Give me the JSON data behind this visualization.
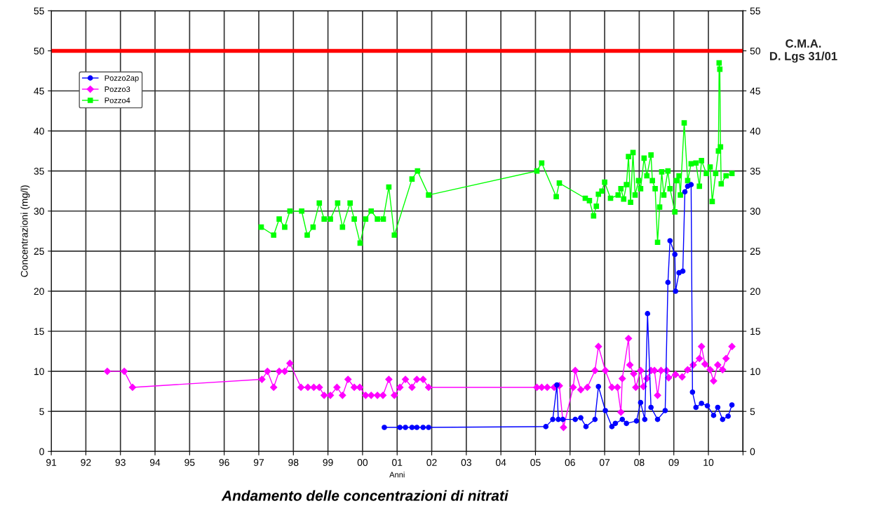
{
  "chart_data": {
    "type": "line",
    "xlabel": "Anni",
    "ylabel": "Concentrazioni (mg/l)",
    "xlim": [
      1991,
      2011
    ],
    "xticks": [
      {
        "value": 1991,
        "label": "91"
      },
      {
        "value": 1992,
        "label": "92"
      },
      {
        "value": 1993,
        "label": "93"
      },
      {
        "value": 1994,
        "label": "94"
      },
      {
        "value": 1995,
        "label": "95"
      },
      {
        "value": 1996,
        "label": "96"
      },
      {
        "value": 1997,
        "label": "97"
      },
      {
        "value": 1998,
        "label": "98"
      },
      {
        "value": 1999,
        "label": "99"
      },
      {
        "value": 2000,
        "label": "00"
      },
      {
        "value": 2001,
        "label": "01"
      },
      {
        "value": 2002,
        "label": "02"
      },
      {
        "value": 2003,
        "label": "03"
      },
      {
        "value": 2004,
        "label": "04"
      },
      {
        "value": 2005,
        "label": "05"
      },
      {
        "value": 2006,
        "label": "06"
      },
      {
        "value": 2007,
        "label": "07"
      },
      {
        "value": 2008,
        "label": "08"
      },
      {
        "value": 2009,
        "label": "09"
      },
      {
        "value": 2010,
        "label": "10"
      },
      {
        "value": 2011,
        "label": null
      }
    ],
    "ylim": [
      0,
      55
    ],
    "yticks": [
      0,
      5,
      10,
      15,
      20,
      25,
      30,
      35,
      40,
      45,
      50,
      55
    ],
    "y2lim": [
      0,
      55
    ],
    "y2ticks": [
      0,
      5,
      10,
      15,
      20,
      25,
      30,
      35,
      40,
      45,
      50,
      55
    ],
    "grid": true,
    "legend": "top left",
    "line_style": "solid",
    "ref_lines": [
      {
        "axis": "y",
        "value": 50,
        "label": "C.M.A.\nD. Lgs 31/01",
        "color": "#ff0000"
      }
    ],
    "annotations": [
      "Andamento delle concentrazioni di nitrati"
    ],
    "series": [
      {
        "name": "Pozzo2ap",
        "color": "#0000ff",
        "marker": "circle",
        "x": [
          2000.63,
          2001.08,
          2001.24,
          2001.43,
          2001.57,
          2001.75,
          2001.91,
          2005.3,
          2005.5,
          2005.62,
          2005.66,
          2005.79,
          2006.15,
          2006.31,
          2006.46,
          2006.72,
          2006.82,
          2007.02,
          2007.21,
          2007.31,
          2007.51,
          2007.63,
          2007.92,
          2008.04,
          2008.16,
          2008.24,
          2008.34,
          2008.53,
          2008.75,
          2008.83,
          2008.89,
          2009.03,
          2009.05,
          2009.15,
          2009.26,
          2009.32,
          2009.4,
          2009.5,
          2009.54,
          2009.64,
          2009.8,
          2009.97,
          2010.15,
          2010.27,
          2010.41,
          2010.57,
          2010.68
        ],
        "values": [
          3.0,
          3.0,
          3.0,
          3.0,
          3.0,
          3.0,
          3.0,
          3.1,
          4.0,
          8.3,
          4.0,
          4.0,
          4.0,
          4.2,
          3.1,
          4.0,
          8.1,
          5.1,
          3.1,
          3.5,
          4.0,
          3.5,
          3.8,
          6.1,
          4.0,
          17.2,
          5.5,
          4.0,
          5.1,
          21.1,
          26.3,
          24.6,
          20.0,
          22.3,
          22.5,
          32.4,
          33.1,
          33.3,
          7.4,
          5.5,
          6.0,
          5.7,
          4.5,
          5.5,
          4.0,
          4.4,
          5.8
        ]
      },
      {
        "name": "Pozzo3",
        "color": "#ff00ff",
        "marker": "diamond",
        "x": [
          1992.62,
          1993.11,
          1993.35,
          1997.09,
          1997.25,
          1997.43,
          1997.59,
          1997.75,
          1997.9,
          1998.22,
          1998.42,
          1998.59,
          1998.75,
          1998.89,
          1999.07,
          1999.26,
          1999.42,
          1999.58,
          1999.76,
          1999.92,
          2000.09,
          2000.25,
          2000.43,
          2000.59,
          2000.76,
          2000.92,
          2001.08,
          2001.24,
          2001.43,
          2001.57,
          2001.75,
          2001.91,
          2005.04,
          2005.18,
          2005.34,
          2005.54,
          2005.69,
          2005.81,
          2006.09,
          2006.15,
          2006.31,
          2006.5,
          2006.72,
          2006.82,
          2007.02,
          2007.21,
          2007.37,
          2007.47,
          2007.51,
          2007.69,
          2007.73,
          2007.84,
          2007.9,
          2008.04,
          2008.12,
          2008.22,
          2008.34,
          2008.44,
          2008.53,
          2008.63,
          2008.79,
          2008.85,
          2009.05,
          2009.24,
          2009.4,
          2009.56,
          2009.74,
          2009.8,
          2009.9,
          2010.05,
          2010.15,
          2010.27,
          2010.41,
          2010.51,
          2010.68
        ],
        "values": [
          10,
          10,
          8,
          9,
          10,
          8,
          10,
          10,
          11,
          8,
          8,
          8,
          8,
          7,
          7,
          8,
          7,
          9,
          8,
          8,
          7,
          7,
          7,
          7,
          9,
          7,
          8,
          9,
          8,
          9,
          9,
          8,
          8,
          8,
          8,
          8,
          8.2,
          3.0,
          8.0,
          10.1,
          7.7,
          8.0,
          10.1,
          13.1,
          10.1,
          8.0,
          8.0,
          4.9,
          9.1,
          14.1,
          10.8,
          9.7,
          8.0,
          10.1,
          8.1,
          9.1,
          10.1,
          10.1,
          7.0,
          10.1,
          10.1,
          9.2,
          9.6,
          9.3,
          10.2,
          10.8,
          11.6,
          13.1,
          10.9,
          10.2,
          8.8,
          10.8,
          10.2,
          11.6,
          13.1
        ]
      },
      {
        "name": "Pozzo4",
        "color": "#00ff00",
        "marker": "square",
        "x": [
          1997.07,
          1997.43,
          1997.59,
          1997.75,
          1997.9,
          1998.24,
          1998.4,
          1998.57,
          1998.75,
          1998.89,
          1999.07,
          1999.28,
          1999.42,
          1999.64,
          1999.76,
          1999.93,
          2000.09,
          2000.25,
          2000.43,
          2000.6,
          2000.76,
          2000.92,
          2001.43,
          2001.59,
          2001.91,
          2005.04,
          2005.18,
          2005.6,
          2005.69,
          2006.44,
          2006.56,
          2006.68,
          2006.76,
          2006.82,
          2006.92,
          2007.0,
          2007.17,
          2007.39,
          2007.47,
          2007.55,
          2007.63,
          2007.69,
          2007.75,
          2007.82,
          2007.88,
          2007.98,
          2008.04,
          2008.14,
          2008.22,
          2008.34,
          2008.38,
          2008.46,
          2008.53,
          2008.59,
          2008.65,
          2008.71,
          2008.83,
          2008.89,
          2009.03,
          2009.07,
          2009.15,
          2009.19,
          2009.3,
          2009.4,
          2009.5,
          2009.64,
          2009.74,
          2009.8,
          2009.94,
          2010.05,
          2010.11,
          2010.21,
          2010.29,
          2010.31,
          2010.33,
          2010.35,
          2010.37,
          2010.51,
          2010.68
        ],
        "values": [
          28,
          27,
          29,
          28,
          30,
          30,
          27,
          28,
          31,
          29,
          29,
          31,
          28,
          31,
          29,
          26,
          29,
          30,
          29,
          29,
          33,
          27,
          34,
          35,
          32,
          35,
          36,
          31.8,
          33.5,
          31.6,
          31.3,
          29.4,
          30.6,
          32.1,
          32.5,
          33.6,
          31.6,
          32.0,
          32.8,
          31.5,
          33.3,
          36.8,
          31.1,
          37.3,
          32.0,
          33.8,
          32.8,
          36.6,
          34.4,
          37.0,
          33.8,
          32.8,
          26.1,
          30.5,
          34.9,
          32.0,
          35.0,
          32.8,
          29.9,
          33.8,
          34.4,
          32.0,
          41.0,
          33.8,
          35.9,
          36.0,
          33.1,
          36.3,
          34.7,
          35.5,
          31.2,
          34.7,
          37.5,
          48.5,
          47.7,
          38.0,
          33.4,
          34.4,
          34.7
        ]
      }
    ]
  }
}
